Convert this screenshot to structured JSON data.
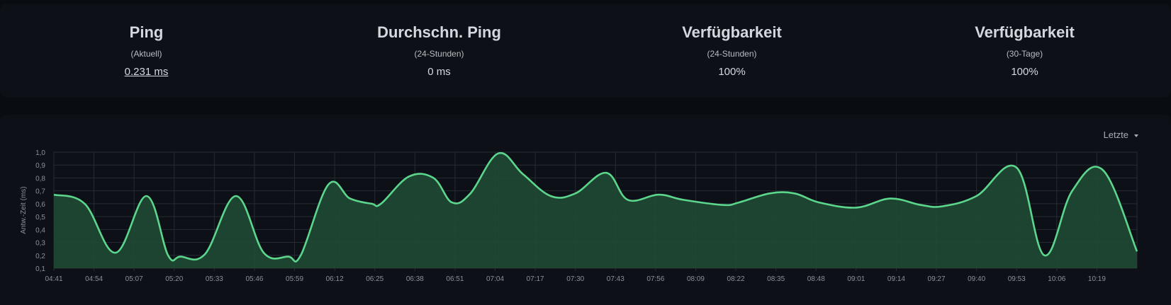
{
  "stats": [
    {
      "title": "Ping",
      "sub": "(Aktuell)",
      "value": "0.231 ms"
    },
    {
      "title": "Durchschn. Ping",
      "sub": "(24-Stunden)",
      "value": "0 ms"
    },
    {
      "title": "Verfügbarkeit",
      "sub": "(24-Stunden)",
      "value": "100%"
    },
    {
      "title": "Verfügbarkeit",
      "sub": "(30-Tage)",
      "value": "100%"
    }
  ],
  "period_select": {
    "label": "Letzte"
  },
  "colors": {
    "line": "#5cd68d",
    "area": "#1f4a33",
    "grid": "#262b33",
    "tick": "#8b9097"
  },
  "chart_data": {
    "type": "area",
    "ylabel": "Antw.-Zeit (ms)",
    "ylim": [
      0.1,
      1.0
    ],
    "yticks": [
      "0,1",
      "0,2",
      "0,3",
      "0,4",
      "0,5",
      "0,6",
      "0,7",
      "0,8",
      "0,9",
      "1,0"
    ],
    "xticks": [
      "04:41",
      "04:54",
      "05:07",
      "05:20",
      "05:33",
      "05:46",
      "05:59",
      "06:12",
      "06:25",
      "06:38",
      "06:51",
      "07:04",
      "07:17",
      "07:30",
      "07:43",
      "07:56",
      "08:09",
      "08:22",
      "08:35",
      "08:48",
      "09:01",
      "09:14",
      "09:27",
      "09:40",
      "09:53",
      "10:06",
      "10:19"
    ],
    "xlim": [
      "04:41",
      "10:32"
    ],
    "grid": true,
    "series": [
      {
        "x": [
          "04:41",
          "04:51",
          "05:01",
          "05:11",
          "05:18",
          "05:22",
          "05:30",
          "05:40",
          "05:49",
          "05:57",
          "06:01",
          "06:10",
          "06:17",
          "06:24",
          "06:27",
          "06:36",
          "06:44",
          "06:50",
          "06:56",
          "07:05",
          "07:13",
          "07:22",
          "07:30",
          "07:40",
          "07:47",
          "07:57",
          "08:05",
          "08:18",
          "08:23",
          "08:33",
          "08:41",
          "08:49",
          "09:01",
          "09:12",
          "09:22",
          "09:29",
          "09:40",
          "09:53",
          "10:02",
          "10:11",
          "10:21",
          "10:32"
        ],
        "y": [
          0.67,
          0.6,
          0.22,
          0.66,
          0.2,
          0.19,
          0.21,
          0.66,
          0.22,
          0.19,
          0.2,
          0.75,
          0.64,
          0.6,
          0.6,
          0.81,
          0.8,
          0.61,
          0.68,
          0.99,
          0.83,
          0.66,
          0.68,
          0.84,
          0.63,
          0.67,
          0.63,
          0.59,
          0.61,
          0.68,
          0.68,
          0.61,
          0.57,
          0.64,
          0.59,
          0.58,
          0.66,
          0.88,
          0.2,
          0.7,
          0.86,
          0.23
        ]
      }
    ]
  }
}
